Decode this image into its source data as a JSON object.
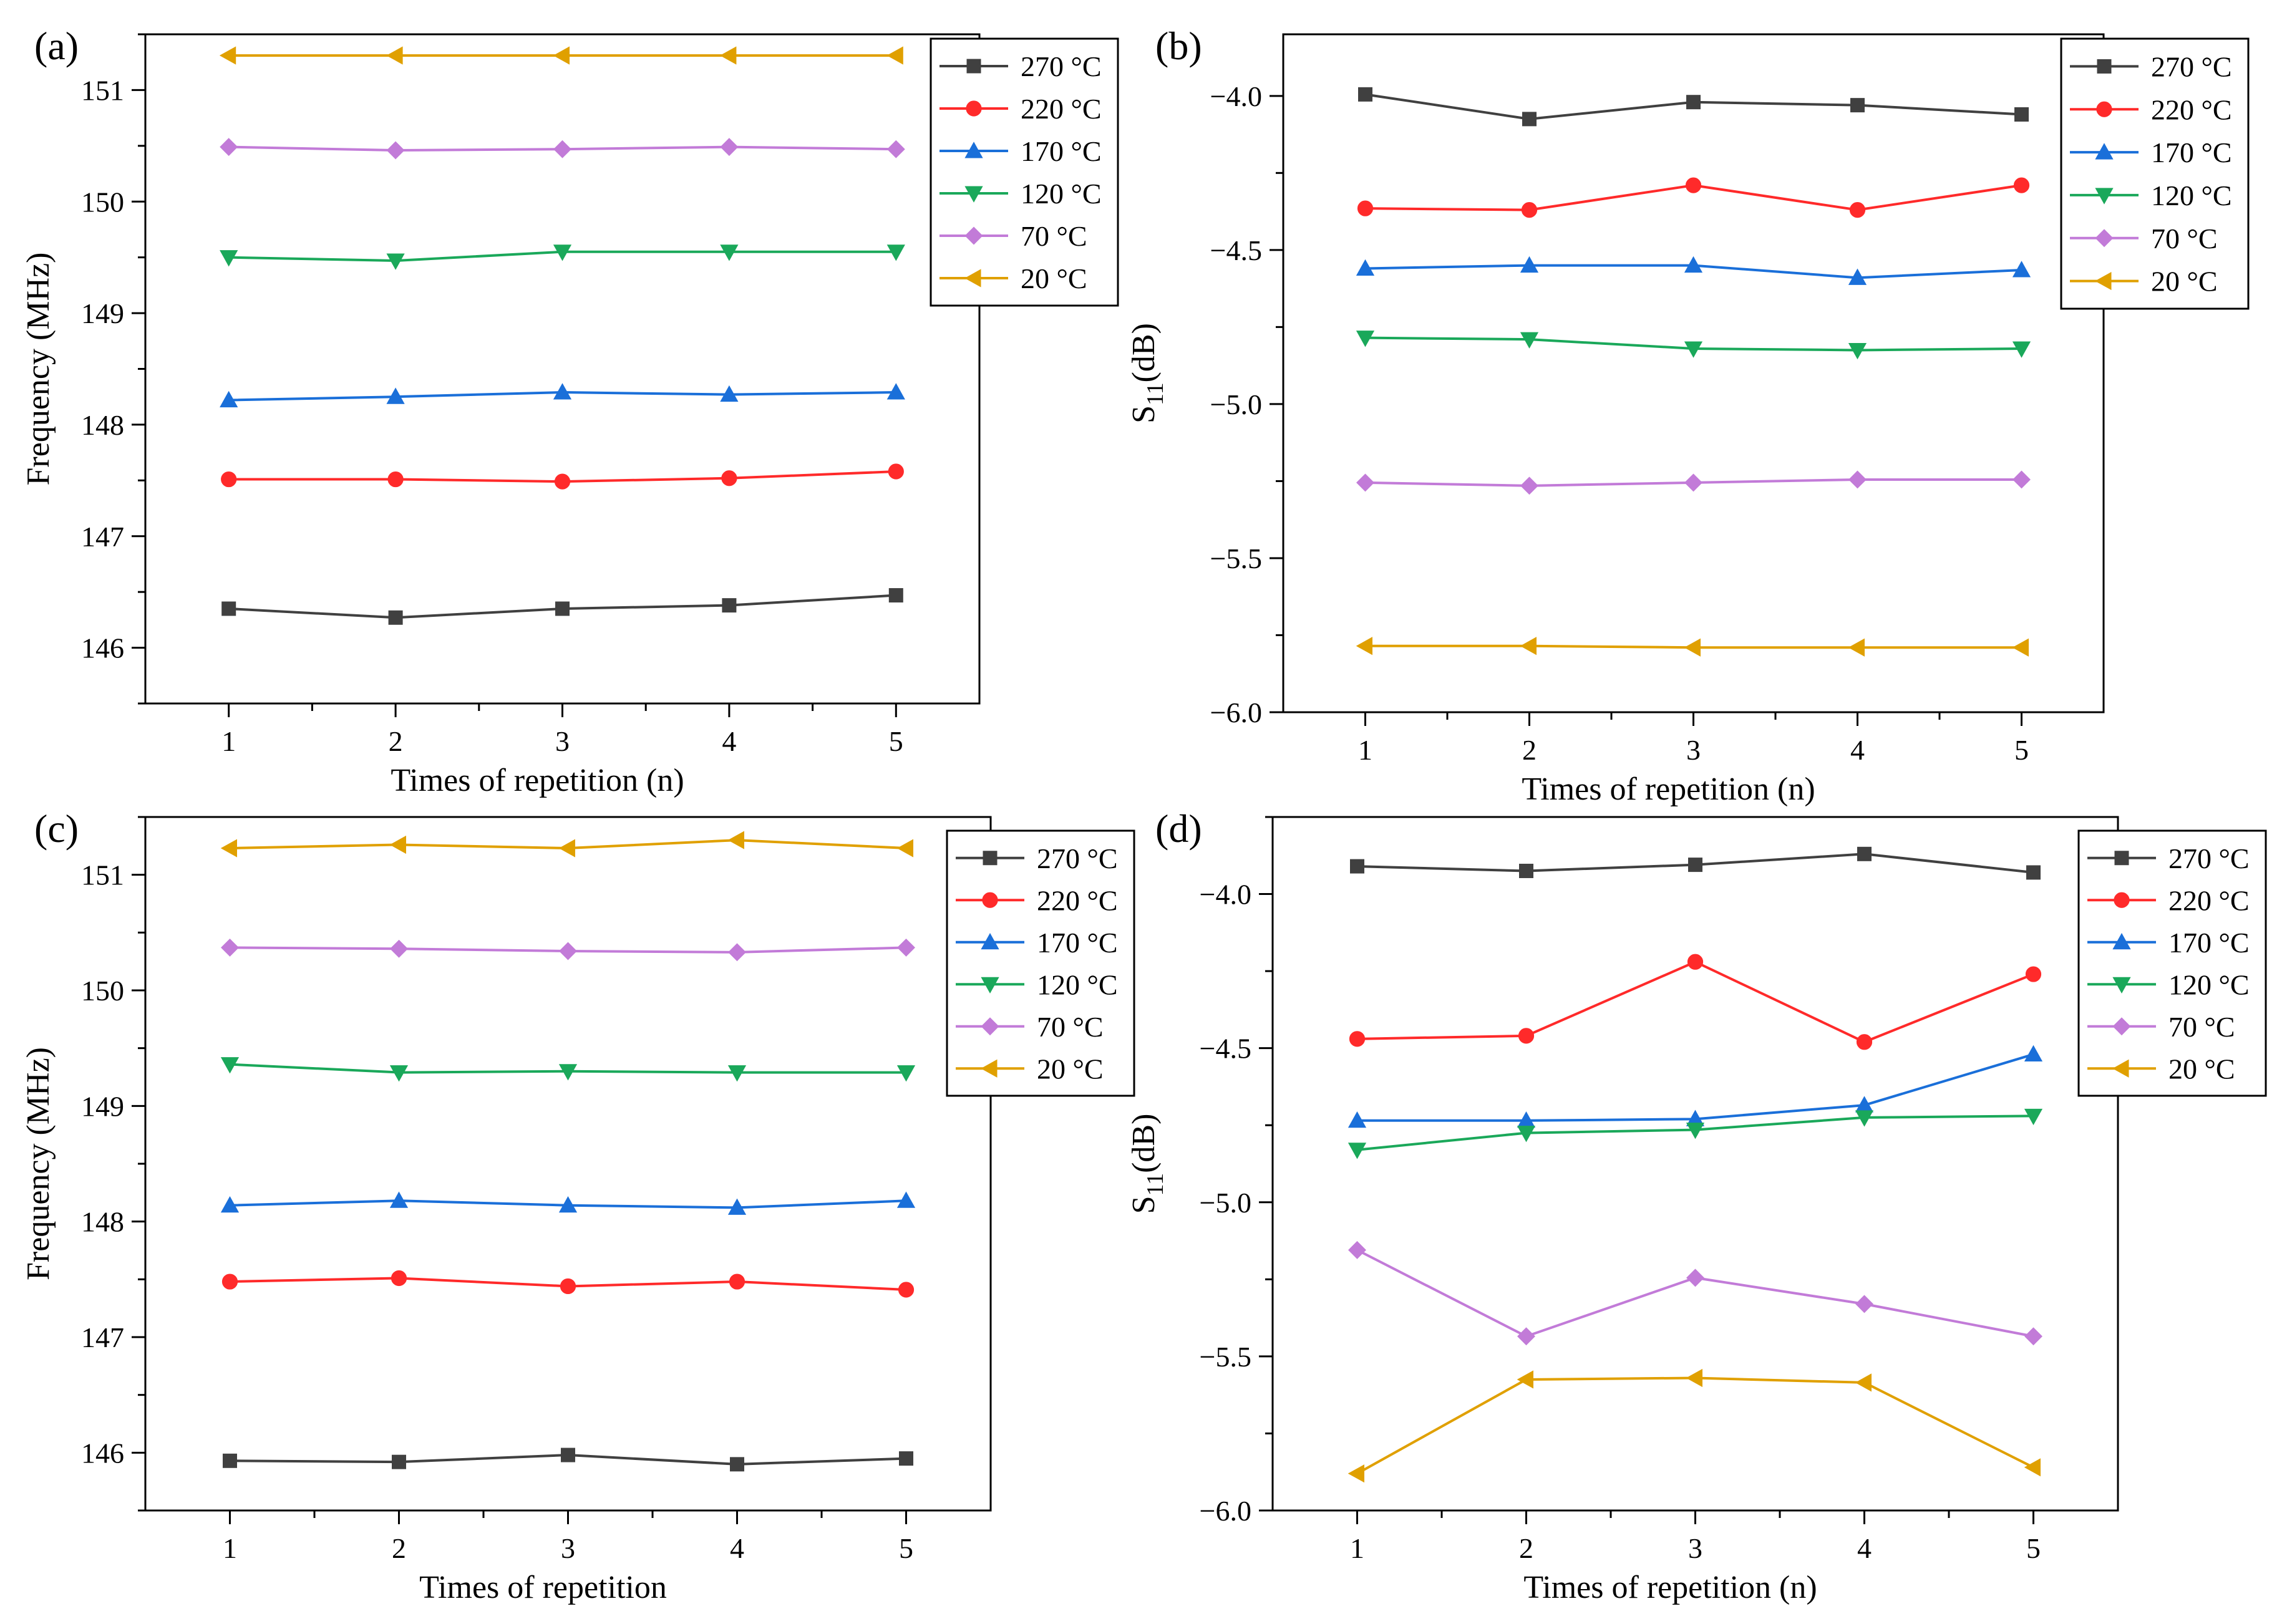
{
  "figure": {
    "description_free": true
  },
  "chart_data": [
    {
      "panel": "(a)",
      "type": "line",
      "xlabel": "Times of repetition (n)",
      "ylabel": "Frequency (MHz)",
      "x": [
        1,
        2,
        3,
        4,
        5
      ],
      "xlim": [
        0.5,
        5.5
      ],
      "ylim": [
        145.5,
        151.5
      ],
      "xticks": [
        "1",
        "2",
        "3",
        "4",
        "5"
      ],
      "yticks": [
        "146",
        "147",
        "148",
        "149",
        "150",
        "151"
      ],
      "series": [
        {
          "name": "270 °C",
          "color": "#404040",
          "marker": "square",
          "values": [
            146.35,
            146.27,
            146.35,
            146.38,
            146.47
          ]
        },
        {
          "name": "220 °C",
          "color": "#ff2a2a",
          "marker": "circle",
          "values": [
            147.51,
            147.51,
            147.49,
            147.52,
            147.58
          ]
        },
        {
          "name": "170 °C",
          "color": "#1a6fd9",
          "marker": "triangle-up",
          "values": [
            148.22,
            148.25,
            148.29,
            148.27,
            148.29
          ]
        },
        {
          "name": "120 °C",
          "color": "#1aa85a",
          "marker": "triangle-down",
          "values": [
            149.5,
            149.47,
            149.55,
            149.55,
            149.55
          ]
        },
        {
          "name": "70 °C",
          "color": "#c27bd8",
          "marker": "diamond",
          "values": [
            150.49,
            150.46,
            150.47,
            150.49,
            150.47
          ]
        },
        {
          "name": "20 °C",
          "color": "#e0a000",
          "marker": "triangle-left",
          "values": [
            151.31,
            151.31,
            151.31,
            151.31,
            151.31
          ]
        }
      ]
    },
    {
      "panel": "(b)",
      "type": "line",
      "xlabel": "Times of repetition (n)",
      "ylabel_main": "S",
      "ylabel_sub": "11",
      "ylabel_tail": "(dB)",
      "x": [
        1,
        2,
        3,
        4,
        5
      ],
      "xlim": [
        0.5,
        5.5
      ],
      "ylim": [
        -6.0,
        -3.8
      ],
      "xticks": [
        "1",
        "2",
        "3",
        "4",
        "5"
      ],
      "yticks": [
        "-6.0",
        "-5.5",
        "-5.0",
        "-4.5",
        "-4.0"
      ],
      "series": [
        {
          "name": "270 °C",
          "color": "#404040",
          "marker": "square",
          "values": [
            -3.995,
            -4.075,
            -4.02,
            -4.03,
            -4.06
          ]
        },
        {
          "name": "220 °C",
          "color": "#ff2a2a",
          "marker": "circle",
          "values": [
            -4.365,
            -4.37,
            -4.29,
            -4.37,
            -4.29
          ]
        },
        {
          "name": "170 °C",
          "color": "#1a6fd9",
          "marker": "triangle-up",
          "values": [
            -4.56,
            -4.55,
            -4.55,
            -4.59,
            -4.565
          ]
        },
        {
          "name": "120 °C",
          "color": "#1aa85a",
          "marker": "triangle-down",
          "values": [
            -4.785,
            -4.79,
            -4.82,
            -4.825,
            -4.82
          ]
        },
        {
          "name": "70 °C",
          "color": "#c27bd8",
          "marker": "diamond",
          "values": [
            -5.255,
            -5.265,
            -5.255,
            -5.245,
            -5.245
          ]
        },
        {
          "name": "20 °C",
          "color": "#e0a000",
          "marker": "triangle-left",
          "values": [
            -5.785,
            -5.785,
            -5.79,
            -5.79,
            -5.79
          ]
        }
      ]
    },
    {
      "panel": "(c)",
      "type": "line",
      "xlabel": "Times of repetition",
      "ylabel": "Frequency (MHz)",
      "x": [
        1,
        2,
        3,
        4,
        5
      ],
      "xlim": [
        0.5,
        5.5
      ],
      "ylim": [
        145.5,
        151.5
      ],
      "xticks": [
        "1",
        "2",
        "3",
        "4",
        "5"
      ],
      "yticks": [
        "146",
        "147",
        "148",
        "149",
        "150",
        "151"
      ],
      "series": [
        {
          "name": "270 °C",
          "color": "#404040",
          "marker": "square",
          "values": [
            145.93,
            145.92,
            145.98,
            145.9,
            145.95
          ]
        },
        {
          "name": "220 °C",
          "color": "#ff2a2a",
          "marker": "circle",
          "values": [
            147.48,
            147.51,
            147.44,
            147.48,
            147.41
          ]
        },
        {
          "name": "170 °C",
          "color": "#1a6fd9",
          "marker": "triangle-up",
          "values": [
            148.14,
            148.18,
            148.14,
            148.12,
            148.18
          ]
        },
        {
          "name": "120 °C",
          "color": "#1aa85a",
          "marker": "triangle-down",
          "values": [
            149.36,
            149.29,
            149.3,
            149.29,
            149.29
          ]
        },
        {
          "name": "70 °C",
          "color": "#c27bd8",
          "marker": "diamond",
          "values": [
            150.37,
            150.36,
            150.34,
            150.33,
            150.37
          ]
        },
        {
          "name": "20 °C",
          "color": "#e0a000",
          "marker": "triangle-left",
          "values": [
            151.23,
            151.26,
            151.23,
            151.3,
            151.23
          ]
        }
      ]
    },
    {
      "panel": "(d)",
      "type": "line",
      "xlabel": "Times of repetition (n)",
      "ylabel_main": "S",
      "ylabel_sub": "11",
      "ylabel_tail": "(dB)",
      "x": [
        1,
        2,
        3,
        4,
        5
      ],
      "xlim": [
        0.5,
        5.5
      ],
      "ylim": [
        -6.0,
        -3.75
      ],
      "xticks": [
        "1",
        "2",
        "3",
        "4",
        "5"
      ],
      "yticks": [
        "-6.0",
        "-5.5",
        "-5.0",
        "-4.5",
        "-4.0"
      ],
      "series": [
        {
          "name": "270 °C",
          "color": "#404040",
          "marker": "square",
          "values": [
            -3.91,
            -3.925,
            -3.905,
            -3.87,
            -3.93
          ]
        },
        {
          "name": "220 °C",
          "color": "#ff2a2a",
          "marker": "circle",
          "values": [
            -4.47,
            -4.46,
            -4.22,
            -4.48,
            -4.26
          ]
        },
        {
          "name": "170 °C",
          "color": "#1a6fd9",
          "marker": "triangle-up",
          "values": [
            -4.735,
            -4.735,
            -4.73,
            -4.685,
            -4.52
          ]
        },
        {
          "name": "120 °C",
          "color": "#1aa85a",
          "marker": "triangle-down",
          "values": [
            -4.83,
            -4.775,
            -4.765,
            -4.725,
            -4.72
          ]
        },
        {
          "name": "70 °C",
          "color": "#c27bd8",
          "marker": "diamond",
          "values": [
            -5.155,
            -5.435,
            -5.245,
            -5.33,
            -5.435
          ]
        },
        {
          "name": "20 °C",
          "color": "#e0a000",
          "marker": "triangle-left",
          "values": [
            -5.88,
            -5.575,
            -5.57,
            -5.585,
            -5.86
          ]
        }
      ]
    }
  ]
}
